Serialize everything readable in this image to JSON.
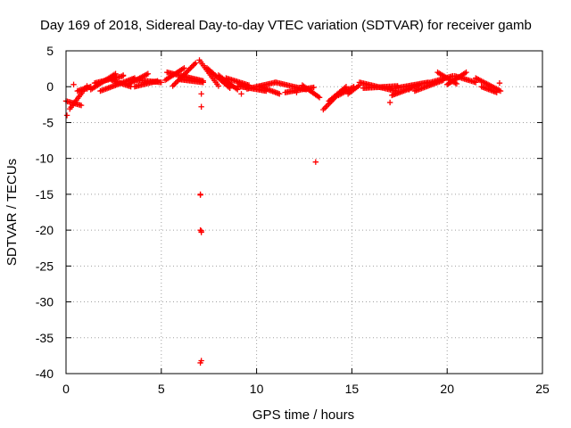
{
  "chart_data": {
    "type": "scatter",
    "title": "Day 169 of 2018, Sidereal Day-to-day VTEC variation (SDTVAR) for receiver gamb",
    "xlabel": "GPS time / hours",
    "ylabel": "SDTVAR / TECUs",
    "xlim": [
      0,
      25
    ],
    "ylim": [
      -40,
      5
    ],
    "xticks": [
      0,
      5,
      10,
      15,
      20,
      25
    ],
    "yticks": [
      5,
      0,
      -5,
      -10,
      -15,
      -20,
      -25,
      -30,
      -35,
      -40
    ],
    "grid": true,
    "marker": "plus",
    "color": "#ff0000",
    "series_segments": [
      {
        "x": [
          0.0,
          0.8
        ],
        "y": [
          -2.0,
          -2.6
        ]
      },
      {
        "x": [
          0.2,
          1.1
        ],
        "y": [
          -3.1,
          0.1
        ]
      },
      {
        "x": [
          0.6,
          1.3
        ],
        "y": [
          -0.6,
          0.0
        ]
      },
      {
        "x": [
          1.3,
          2.6
        ],
        "y": [
          -0.4,
          1.8
        ]
      },
      {
        "x": [
          1.5,
          3.0
        ],
        "y": [
          0.5,
          1.5
        ]
      },
      {
        "x": [
          1.8,
          3.6
        ],
        "y": [
          -0.6,
          1.2
        ]
      },
      {
        "x": [
          2.4,
          3.4
        ],
        "y": [
          0.9,
          0.0
        ]
      },
      {
        "x": [
          3.3,
          4.3
        ],
        "y": [
          0.4,
          1.8
        ]
      },
      {
        "x": [
          3.5,
          5.0
        ],
        "y": [
          1.0,
          0.6
        ]
      },
      {
        "x": [
          3.6,
          4.8
        ],
        "y": [
          0.0,
          0.8
        ]
      },
      {
        "x": [
          5.2,
          6.2
        ],
        "y": [
          0.9,
          2.6
        ]
      },
      {
        "x": [
          5.3,
          7.2
        ],
        "y": [
          2.0,
          0.8
        ]
      },
      {
        "x": [
          5.6,
          6.8
        ],
        "y": [
          0.1,
          3.3
        ]
      },
      {
        "x": [
          6.0,
          7.2
        ],
        "y": [
          1.0,
          0.6
        ]
      },
      {
        "x": [
          7.0,
          8.0
        ],
        "y": [
          3.7,
          0.1
        ]
      },
      {
        "x": [
          7.4,
          8.6
        ],
        "y": [
          2.6,
          -0.2
        ]
      },
      {
        "x": [
          8.0,
          9.0
        ],
        "y": [
          1.6,
          -0.4
        ]
      },
      {
        "x": [
          8.4,
          9.6
        ],
        "y": [
          1.2,
          0.2
        ]
      },
      {
        "x": [
          9.0,
          10.5
        ],
        "y": [
          0.1,
          -0.6
        ]
      },
      {
        "x": [
          9.5,
          11.0
        ],
        "y": [
          -0.3,
          0.6
        ]
      },
      {
        "x": [
          10.2,
          11.2
        ],
        "y": [
          0.0,
          -1.0
        ]
      },
      {
        "x": [
          11.0,
          12.6
        ],
        "y": [
          0.6,
          -0.4
        ]
      },
      {
        "x": [
          11.5,
          13.0
        ],
        "y": [
          -0.8,
          -0.1
        ]
      },
      {
        "x": [
          12.4,
          13.3
        ],
        "y": [
          0.2,
          -1.5
        ]
      },
      {
        "x": [
          13.5,
          14.3
        ],
        "y": [
          -3.2,
          -1.0
        ]
      },
      {
        "x": [
          13.8,
          14.7
        ],
        "y": [
          -2.0,
          0.0
        ]
      },
      {
        "x": [
          14.3,
          15.1
        ],
        "y": [
          -1.2,
          0.0
        ]
      },
      {
        "x": [
          14.8,
          15.4
        ],
        "y": [
          -1.0,
          0.2
        ]
      },
      {
        "x": [
          15.4,
          17.3
        ],
        "y": [
          0.6,
          -0.6
        ]
      },
      {
        "x": [
          15.6,
          17.4
        ],
        "y": [
          -0.2,
          0.1
        ]
      },
      {
        "x": [
          17.1,
          18.5
        ],
        "y": [
          -1.2,
          0.2
        ]
      },
      {
        "x": [
          17.3,
          19.0
        ],
        "y": [
          -0.2,
          0.6
        ]
      },
      {
        "x": [
          18.3,
          19.8
        ],
        "y": [
          -0.6,
          0.9
        ]
      },
      {
        "x": [
          19.0,
          20.3
        ],
        "y": [
          0.5,
          1.5
        ]
      },
      {
        "x": [
          19.5,
          20.5
        ],
        "y": [
          2.0,
          0.4
        ]
      },
      {
        "x": [
          20.0,
          21.0
        ],
        "y": [
          0.3,
          2.0
        ]
      },
      {
        "x": [
          20.4,
          21.5
        ],
        "y": [
          1.5,
          0.6
        ]
      },
      {
        "x": [
          21.5,
          22.8
        ],
        "y": [
          1.2,
          -0.6
        ]
      },
      {
        "x": [
          21.8,
          22.6
        ],
        "y": [
          0.0,
          -0.8
        ]
      }
    ],
    "series_points": {
      "x": [
        0.05,
        7.1,
        7.1,
        7.05,
        7.05,
        7.05,
        7.1,
        7.1,
        7.1,
        7.05,
        13.1,
        17.0,
        22.75,
        0.4,
        1.1,
        3.0,
        9.2,
        12.1,
        18.0
      ],
      "y": [
        -4.0,
        -2.8,
        -1.0,
        -15.0,
        -15.1,
        -20.0,
        -20.1,
        -20.3,
        -38.2,
        -38.5,
        -10.5,
        -2.2,
        0.5,
        0.3,
        -0.3,
        1.6,
        -1.0,
        -0.8,
        -0.4
      ]
    }
  }
}
